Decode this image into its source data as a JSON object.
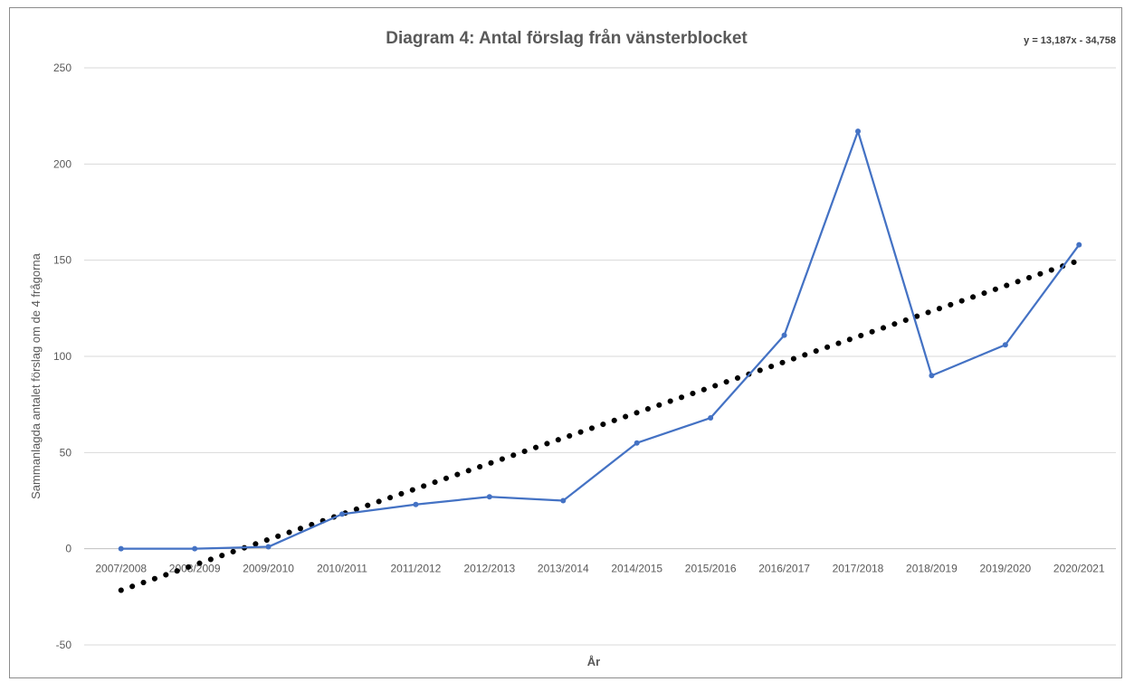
{
  "chart_data": {
    "type": "line",
    "title": "Diagram 4: Antal förslag från vänsterblocket",
    "equation": "y = 13,187x - 34,758",
    "xlabel": "År",
    "ylabel": "Sammanlagda antalet förslag om de 4 frågorna",
    "ylim": [
      -50,
      250
    ],
    "yticks": [
      -50,
      0,
      50,
      100,
      150,
      200,
      250
    ],
    "grid": true,
    "categories": [
      "2007/2008",
      "2008/2009",
      "2009/2010",
      "2010/2011",
      "2011/2012",
      "2012/2013",
      "2013/2014",
      "2014/2015",
      "2015/2016",
      "2016/2017",
      "2017/2018",
      "2018/2019",
      "2019/2020",
      "2020/2021"
    ],
    "series": [
      {
        "color": "#4472c4",
        "values": [
          0,
          0,
          1,
          18,
          23,
          27,
          25,
          55,
          68,
          111,
          217,
          90,
          106,
          158
        ]
      }
    ],
    "trendline": {
      "type": "linear",
      "slope": 13.187,
      "intercept": -34.758,
      "color": "#000000",
      "style": "dotted"
    }
  }
}
